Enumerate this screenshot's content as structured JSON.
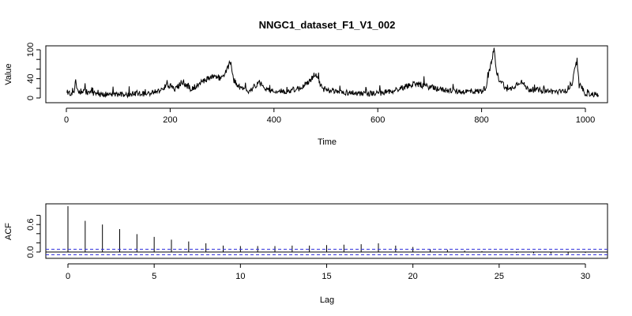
{
  "chart_data": [
    {
      "type": "line",
      "title": "NNGC1_dataset_F1_V1_002",
      "xlabel": "Time",
      "ylabel": "Value",
      "xlim": [
        0,
        1025
      ],
      "ylim": [
        0,
        105
      ],
      "xticks": [
        0,
        200,
        400,
        600,
        800,
        1000
      ],
      "yticks": [
        0,
        40,
        100
      ],
      "line_color": "#000000",
      "n_points": 1025,
      "anchors": [
        [
          1,
          8
        ],
        [
          15,
          10
        ],
        [
          18,
          36
        ],
        [
          22,
          15
        ],
        [
          40,
          12
        ],
        [
          60,
          8
        ],
        [
          100,
          7
        ],
        [
          150,
          9
        ],
        [
          180,
          14
        ],
        [
          195,
          28
        ],
        [
          210,
          18
        ],
        [
          225,
          34
        ],
        [
          240,
          16
        ],
        [
          260,
          33
        ],
        [
          280,
          45
        ],
        [
          300,
          40
        ],
        [
          308,
          58
        ],
        [
          312,
          65
        ],
        [
          316,
          75
        ],
        [
          322,
          38
        ],
        [
          335,
          20
        ],
        [
          350,
          14
        ],
        [
          372,
          32
        ],
        [
          390,
          16
        ],
        [
          420,
          13
        ],
        [
          450,
          20
        ],
        [
          470,
          35
        ],
        [
          478,
          50
        ],
        [
          483,
          45
        ],
        [
          495,
          15
        ],
        [
          530,
          12
        ],
        [
          560,
          10
        ],
        [
          600,
          9
        ],
        [
          630,
          15
        ],
        [
          650,
          22
        ],
        [
          670,
          30
        ],
        [
          690,
          25
        ],
        [
          720,
          18
        ],
        [
          760,
          13
        ],
        [
          800,
          14
        ],
        [
          808,
          22
        ],
        [
          815,
          55
        ],
        [
          820,
          78
        ],
        [
          824,
          100
        ],
        [
          828,
          58
        ],
        [
          833,
          40
        ],
        [
          840,
          32
        ],
        [
          850,
          14
        ],
        [
          875,
          35
        ],
        [
          890,
          18
        ],
        [
          930,
          14
        ],
        [
          960,
          12
        ],
        [
          975,
          30
        ],
        [
          980,
          62
        ],
        [
          984,
          72
        ],
        [
          988,
          25
        ],
        [
          1000,
          10
        ],
        [
          1025,
          6
        ]
      ]
    },
    {
      "type": "bar",
      "xlabel": "Lag",
      "ylabel": "ACF",
      "xlim": [
        -1,
        30.9
      ],
      "ylim": [
        -0.1,
        1.0
      ],
      "xticks": [
        0,
        5,
        10,
        15,
        20,
        25,
        30
      ],
      "yticks": [
        0.0,
        0.6
      ],
      "confidence_band": 0.061,
      "band_color": "#3333dd",
      "lags": [
        0,
        1,
        2,
        3,
        4,
        5,
        6,
        7,
        8,
        9,
        10,
        11,
        12,
        13,
        14,
        15,
        16,
        17,
        18,
        19,
        20,
        21,
        22,
        23,
        24,
        25,
        26,
        27,
        28,
        29,
        30
      ],
      "values": [
        1.0,
        0.68,
        0.6,
        0.5,
        0.39,
        0.33,
        0.27,
        0.23,
        0.19,
        0.14,
        0.13,
        0.13,
        0.13,
        0.14,
        0.14,
        0.15,
        0.16,
        0.17,
        0.19,
        0.14,
        0.11,
        0.06,
        0.05,
        0.03,
        0.02,
        0.0,
        -0.02,
        -0.03,
        -0.04,
        -0.05,
        -0.02
      ]
    }
  ]
}
